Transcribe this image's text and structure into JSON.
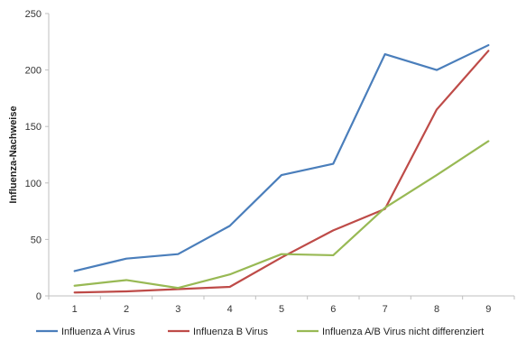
{
  "chart_data": {
    "type": "line",
    "title": "",
    "xlabel": "",
    "ylabel": "Influenza-Nachweise",
    "x": [
      1,
      2,
      3,
      4,
      5,
      6,
      7,
      8,
      9
    ],
    "xticks": [
      "1",
      "2",
      "3",
      "4",
      "5",
      "6",
      "7",
      "8",
      "9"
    ],
    "ylim": [
      0,
      250
    ],
    "yticks": [
      "0",
      "50",
      "100",
      "150",
      "200",
      "250"
    ],
    "grid": false,
    "legend": "bottom",
    "series": [
      {
        "name": "Influenza A Virus",
        "color": "#4a7ebb",
        "values": [
          22,
          33,
          37,
          62,
          107,
          117,
          214,
          200,
          222
        ]
      },
      {
        "name": "Influenza B Virus",
        "color": "#be4b48",
        "values": [
          3,
          4,
          6,
          8,
          34,
          58,
          77,
          165,
          217
        ]
      },
      {
        "name": "Influenza A/B Virus nicht differenziert",
        "color": "#98b954",
        "values": [
          9,
          14,
          7,
          19,
          37,
          36,
          78,
          107,
          137
        ]
      }
    ]
  }
}
